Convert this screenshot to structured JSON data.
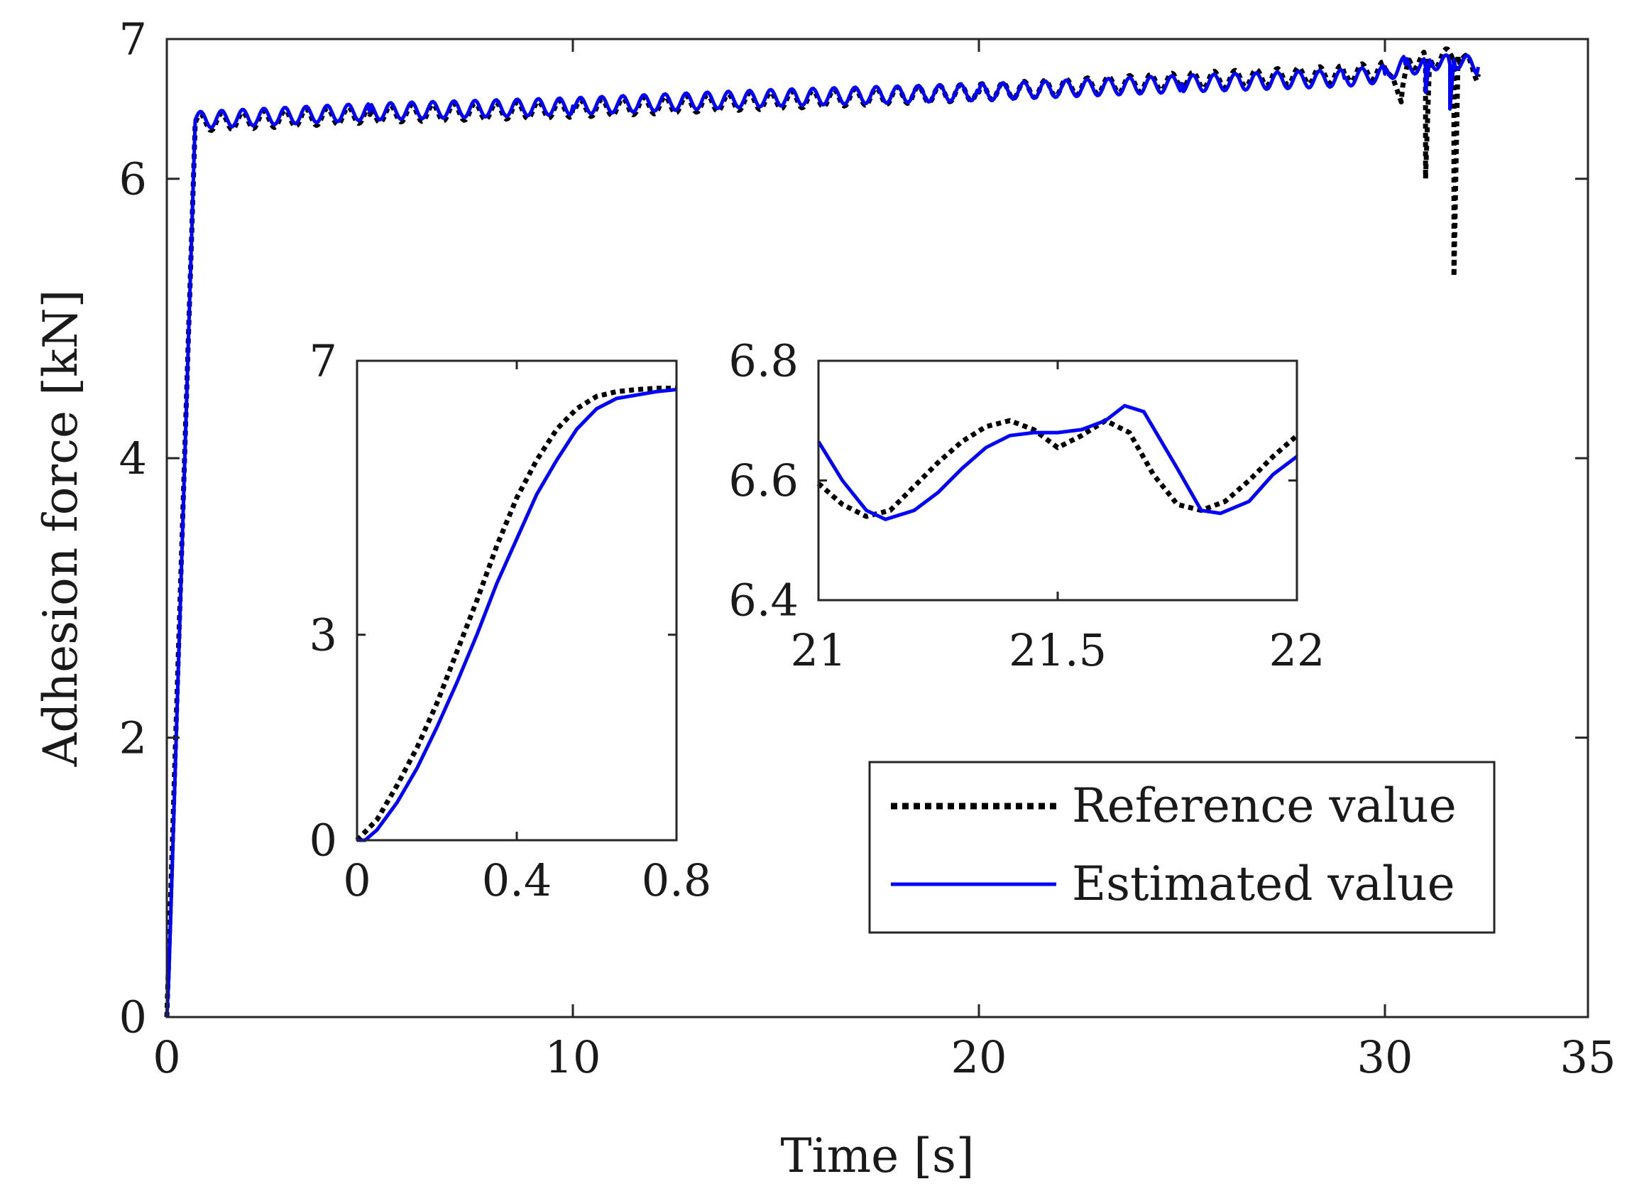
{
  "chart_data": [
    {
      "id": "main",
      "type": "line",
      "title": "",
      "xlabel": "Time [s]",
      "ylabel": "Adhesion force [kN]",
      "xlim": [
        0,
        35
      ],
      "ylim": [
        0,
        7
      ],
      "xticks": [
        0,
        10,
        20,
        30,
        35
      ],
      "yticks": [
        0,
        2,
        4,
        6,
        7
      ],
      "xtick_labels": [
        "0",
        "10",
        "20",
        "30",
        "35"
      ],
      "ytick_labels": [
        "0",
        "2",
        "4",
        "6",
        "7"
      ],
      "legend": {
        "position": "bottom-right",
        "entries": [
          {
            "series": "reference",
            "label": "Reference value"
          },
          {
            "series": "estimated",
            "label": "Estimated value"
          }
        ]
      },
      "series": [
        {
          "name": "reference",
          "label": "Reference value",
          "color": "#000000",
          "style": "dotted",
          "points": [
            [
              0,
              0
            ],
            [
              0.7,
              6.4
            ],
            [
              5,
              6.46
            ],
            [
              10,
              6.5
            ],
            [
              15,
              6.56
            ],
            [
              20,
              6.62
            ],
            [
              25,
              6.7
            ],
            [
              29,
              6.75
            ],
            [
              30,
              6.78
            ],
            [
              30.2,
              6.72
            ],
            [
              30.4,
              6.55
            ],
            [
              30.6,
              6.85
            ],
            [
              31,
              6.85
            ],
            [
              31,
              6.0
            ],
            [
              31.1,
              6.85
            ],
            [
              31.7,
              6.88
            ],
            [
              31.7,
              5.3
            ],
            [
              31.8,
              6.88
            ],
            [
              32.3,
              6.75
            ]
          ]
        },
        {
          "name": "estimated",
          "label": "Estimated value",
          "color": "#0000ff",
          "style": "solid",
          "points": [
            [
              0,
              0
            ],
            [
              0.05,
              0.3
            ],
            [
              0.7,
              6.42
            ],
            [
              5,
              6.48
            ],
            [
              10,
              6.52
            ],
            [
              15,
              6.58
            ],
            [
              20,
              6.62
            ],
            [
              25,
              6.68
            ],
            [
              29,
              6.72
            ],
            [
              30,
              6.75
            ],
            [
              30.5,
              6.82
            ],
            [
              31,
              6.8
            ],
            [
              31,
              6.62
            ],
            [
              31.1,
              6.85
            ],
            [
              31.6,
              6.82
            ],
            [
              31.6,
              6.5
            ],
            [
              31.7,
              6.85
            ],
            [
              32.3,
              6.8
            ]
          ]
        }
      ],
      "oscillation": {
        "period_s": 0.52,
        "amplitude_kN": 0.06
      }
    },
    {
      "id": "inset_start",
      "type": "line",
      "xlim": [
        0,
        0.8
      ],
      "ylim": [
        0,
        7
      ],
      "xticks": [
        0,
        0.4,
        0.8
      ],
      "yticks": [
        0,
        3,
        7
      ],
      "xtick_labels": [
        "0",
        "0.4",
        "0.8"
      ],
      "ytick_labels": [
        "0",
        "3",
        "7"
      ],
      "series": [
        {
          "name": "reference",
          "color": "#000000",
          "style": "dotted",
          "points": [
            [
              0,
              0
            ],
            [
              0.05,
              0.3
            ],
            [
              0.1,
              0.8
            ],
            [
              0.15,
              1.35
            ],
            [
              0.2,
              2.0
            ],
            [
              0.25,
              2.75
            ],
            [
              0.3,
              3.5
            ],
            [
              0.35,
              4.3
            ],
            [
              0.4,
              5.0
            ],
            [
              0.45,
              5.55
            ],
            [
              0.5,
              6.0
            ],
            [
              0.55,
              6.3
            ],
            [
              0.6,
              6.48
            ],
            [
              0.65,
              6.55
            ],
            [
              0.7,
              6.58
            ],
            [
              0.75,
              6.6
            ],
            [
              0.8,
              6.6
            ]
          ]
        },
        {
          "name": "estimated",
          "color": "#0000ff",
          "style": "solid",
          "points": [
            [
              0,
              0
            ],
            [
              0.02,
              0
            ],
            [
              0.05,
              0.15
            ],
            [
              0.1,
              0.55
            ],
            [
              0.15,
              1.05
            ],
            [
              0.2,
              1.65
            ],
            [
              0.25,
              2.3
            ],
            [
              0.3,
              3.0
            ],
            [
              0.35,
              3.75
            ],
            [
              0.4,
              4.4
            ],
            [
              0.45,
              5.05
            ],
            [
              0.5,
              5.55
            ],
            [
              0.55,
              6.0
            ],
            [
              0.6,
              6.3
            ],
            [
              0.65,
              6.45
            ],
            [
              0.7,
              6.5
            ],
            [
              0.75,
              6.55
            ],
            [
              0.8,
              6.58
            ]
          ]
        }
      ]
    },
    {
      "id": "inset_zoom",
      "type": "line",
      "xlim": [
        21,
        22
      ],
      "ylim": [
        6.4,
        6.8
      ],
      "xticks": [
        21,
        21.5,
        22
      ],
      "yticks": [
        6.4,
        6.6,
        6.8
      ],
      "xtick_labels": [
        "21",
        "21.5",
        "22"
      ],
      "ytick_labels": [
        "6.4",
        "6.6",
        "6.8"
      ],
      "series": [
        {
          "name": "reference",
          "color": "#000000",
          "style": "dotted",
          "points": [
            [
              21,
              6.595
            ],
            [
              21.05,
              6.56
            ],
            [
              21.1,
              6.54
            ],
            [
              21.15,
              6.55
            ],
            [
              21.2,
              6.59
            ],
            [
              21.25,
              6.63
            ],
            [
              21.3,
              6.665
            ],
            [
              21.35,
              6.69
            ],
            [
              21.4,
              6.7
            ],
            [
              21.45,
              6.685
            ],
            [
              21.5,
              6.655
            ],
            [
              21.55,
              6.675
            ],
            [
              21.6,
              6.7
            ],
            [
              21.65,
              6.68
            ],
            [
              21.7,
              6.61
            ],
            [
              21.75,
              6.56
            ],
            [
              21.8,
              6.55
            ],
            [
              21.85,
              6.565
            ],
            [
              21.9,
              6.6
            ],
            [
              21.95,
              6.64
            ],
            [
              22,
              6.675
            ]
          ]
        },
        {
          "name": "estimated",
          "color": "#0000ff",
          "style": "solid",
          "points": [
            [
              21,
              6.665
            ],
            [
              21.05,
              6.6
            ],
            [
              21.1,
              6.55
            ],
            [
              21.14,
              6.535
            ],
            [
              21.2,
              6.55
            ],
            [
              21.25,
              6.58
            ],
            [
              21.3,
              6.62
            ],
            [
              21.35,
              6.655
            ],
            [
              21.4,
              6.675
            ],
            [
              21.45,
              6.68
            ],
            [
              21.5,
              6.68
            ],
            [
              21.55,
              6.685
            ],
            [
              21.6,
              6.7
            ],
            [
              21.64,
              6.725
            ],
            [
              21.68,
              6.715
            ],
            [
              21.75,
              6.62
            ],
            [
              21.8,
              6.55
            ],
            [
              21.84,
              6.545
            ],
            [
              21.9,
              6.565
            ],
            [
              21.95,
              6.61
            ],
            [
              22,
              6.64
            ]
          ]
        }
      ]
    }
  ]
}
